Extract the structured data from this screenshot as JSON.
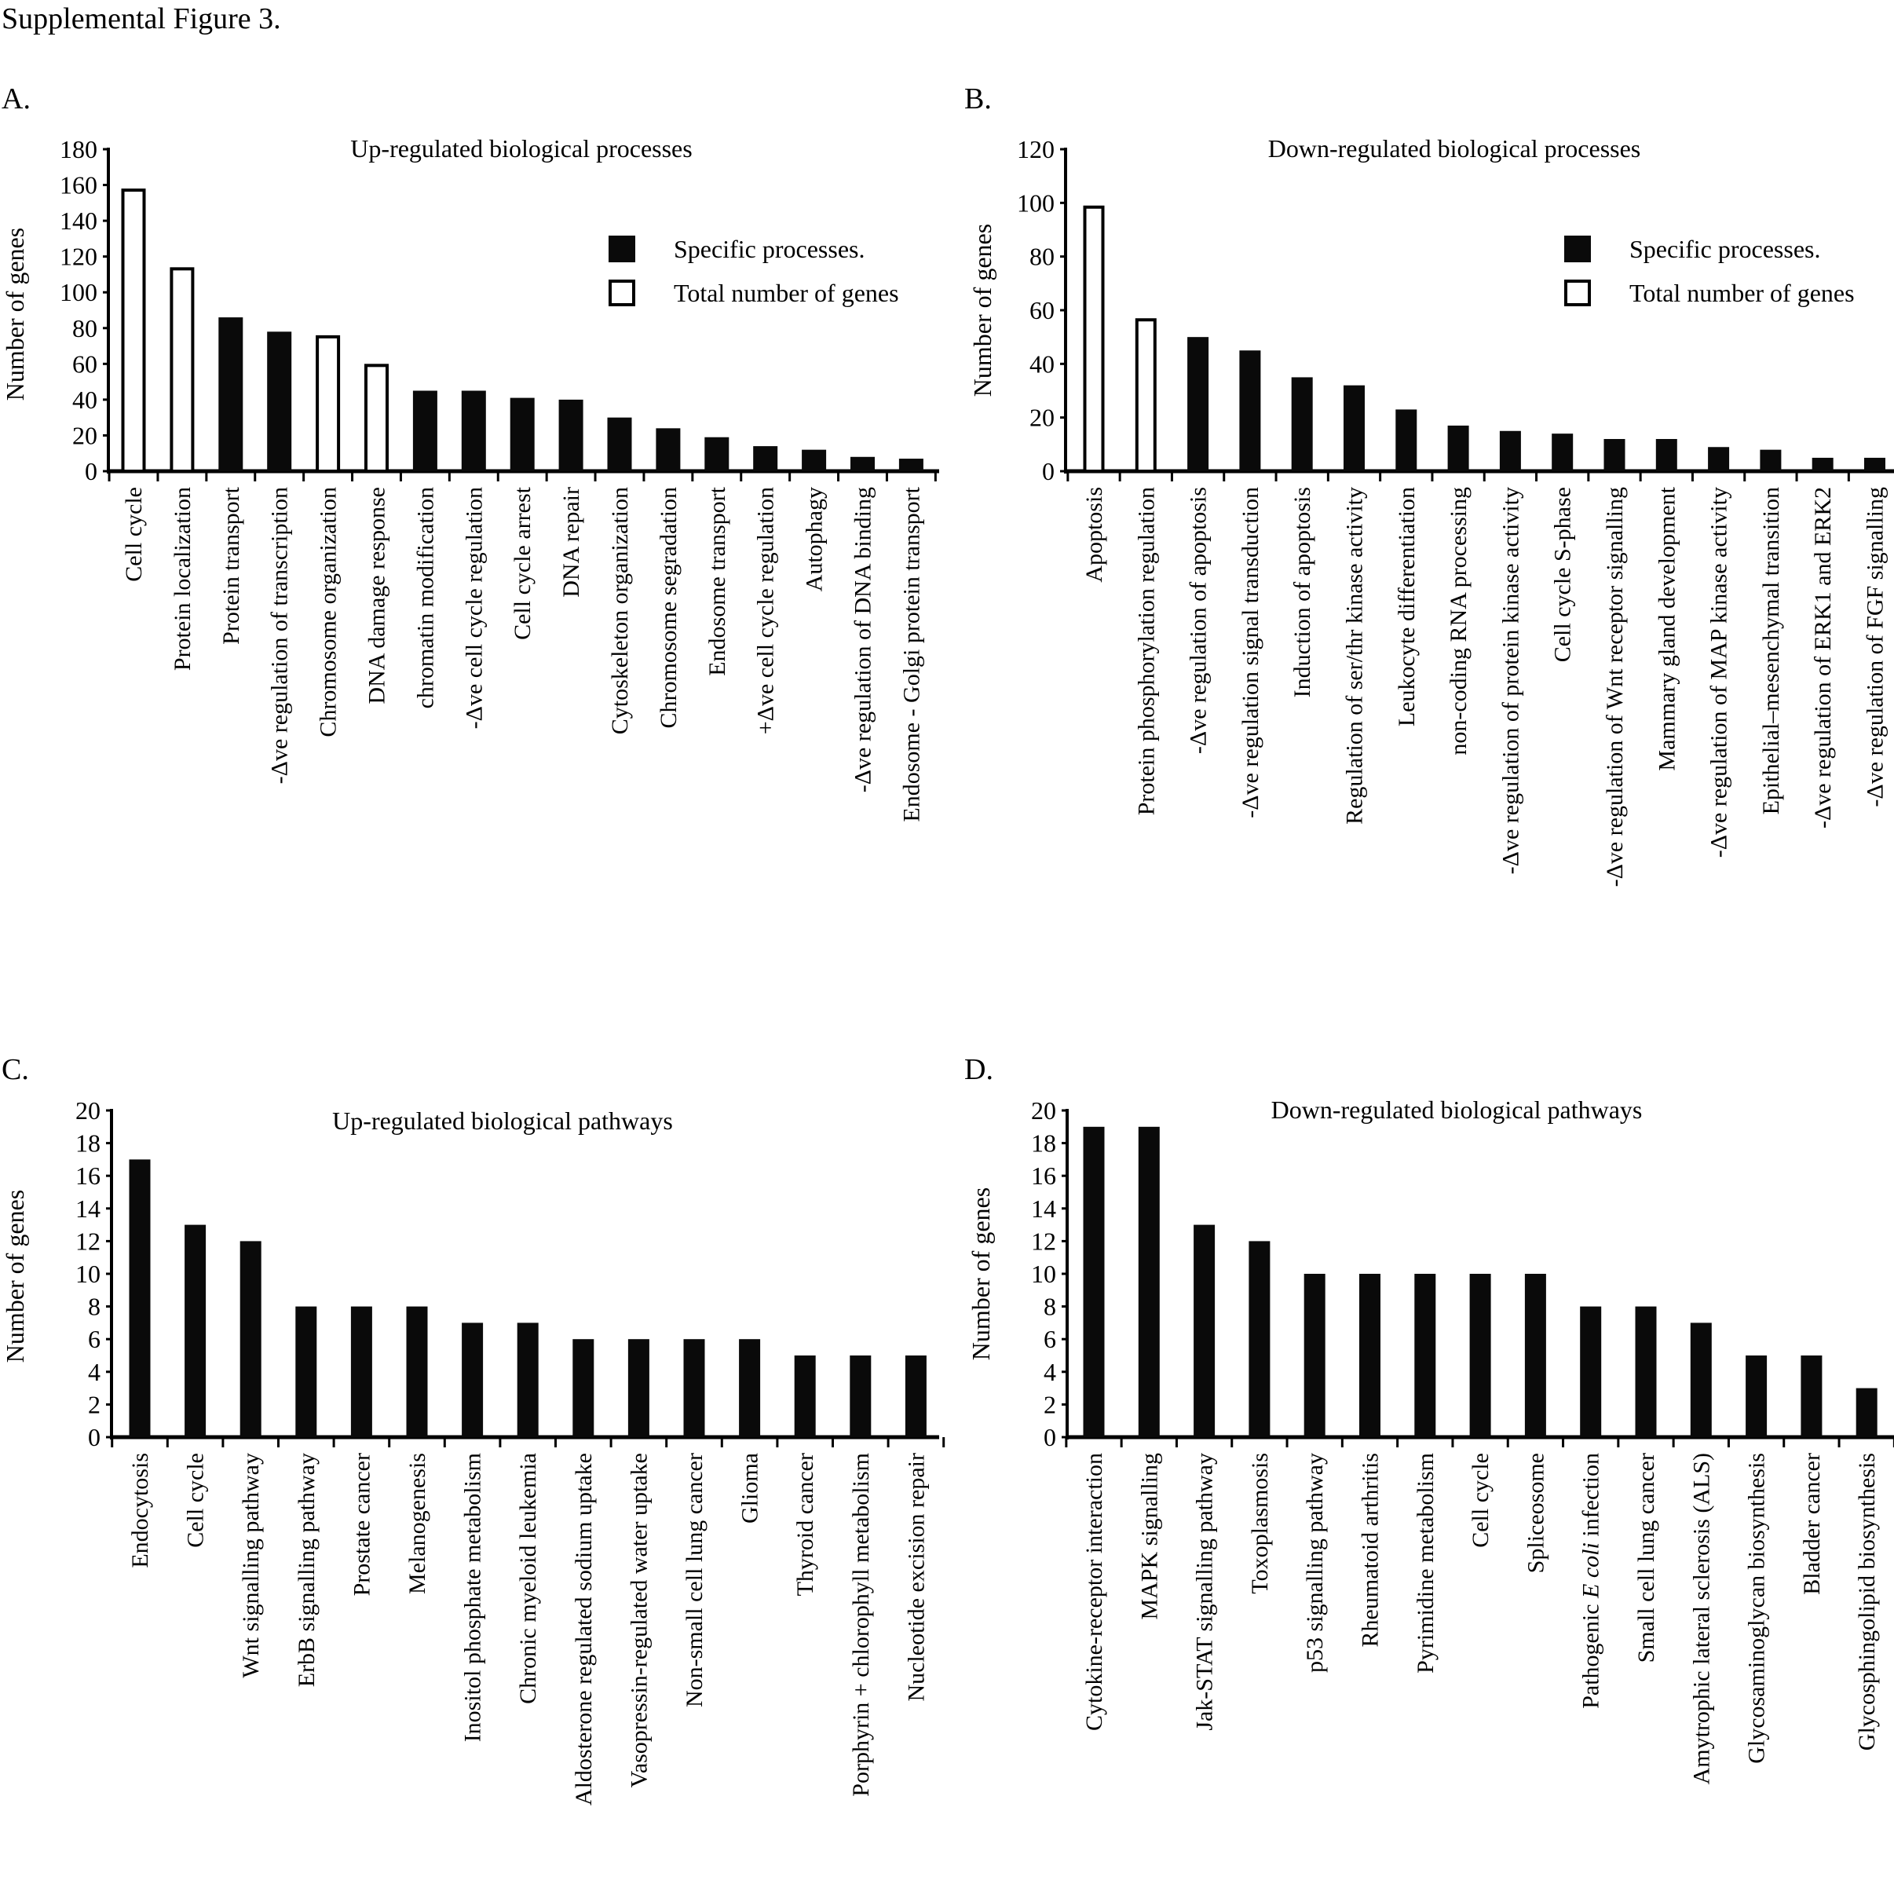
{
  "figure_title": "Supplemental Figure 3.",
  "chart_data": [
    {
      "panel": "A.",
      "type": "bar",
      "title": "Up-regulated biological processes",
      "xlabel": "",
      "ylabel": "Number of genes",
      "ylim": [
        0,
        180
      ],
      "yticks": [
        0,
        20,
        40,
        60,
        80,
        100,
        120,
        140,
        160,
        180
      ],
      "grid": false,
      "legend": {
        "position": "top-right",
        "entries": [
          {
            "label": "Specific processes.",
            "style": "filled"
          },
          {
            "label": "Total number of genes",
            "style": "open"
          }
        ]
      },
      "categories": [
        "Cell cycle",
        "Protein localization",
        "Protein transport",
        "-Δve regulation of transcription",
        "Chromosome organization",
        "DNA damage response",
        "chromatin modification",
        "-Δve cell cycle regulation",
        "Cell cycle arrest",
        "DNA repair",
        "Cytoskeleton organization",
        "Chromosome segradation",
        "Endosome transport",
        "+Δve cell cycle regulation",
        "Autophagy",
        "-Δve regulation of DNA binding",
        "Endosome - Golgi protein transport"
      ],
      "values": [
        158,
        114,
        86,
        78,
        76,
        60,
        45,
        45,
        41,
        40,
        30,
        24,
        19,
        14,
        12,
        8,
        7
      ],
      "bar_styles": [
        "open",
        "open",
        "filled",
        "filled",
        "open",
        "open",
        "filled",
        "filled",
        "filled",
        "filled",
        "filled",
        "filled",
        "filled",
        "filled",
        "filled",
        "filled",
        "filled"
      ]
    },
    {
      "panel": "B.",
      "type": "bar",
      "title": "Down-regulated biological processes",
      "xlabel": "",
      "ylabel": "Number of genes",
      "ylim": [
        0,
        120
      ],
      "yticks": [
        0,
        20,
        40,
        60,
        80,
        100,
        120
      ],
      "grid": false,
      "legend": {
        "position": "top-right",
        "entries": [
          {
            "label": "Specific processes.",
            "style": "filled"
          },
          {
            "label": "Total number of genes",
            "style": "open"
          }
        ]
      },
      "categories": [
        "Apoptosis",
        "Protein phosphorylation regulation",
        "-Δve regulation of apoptosis",
        "-Δve regulation signal transduction",
        "Induction of apoptosis",
        "Regulation of ser/thr kinase activity",
        "Leukocyte differentiation",
        "non-coding RNA processing",
        "-Δve regulation of protein kinase activity",
        "Cell cycle S-phase",
        "-Δve regulation of Wnt receptor signalling",
        "Mammary gland development",
        "-Δve regulation of MAP kinase activity",
        "Epithelial–mesenchymal transition",
        "-Δve regulation of ERK1 and ERK2",
        "-Δve regulation of FGF signalling"
      ],
      "values": [
        99,
        57,
        50,
        45,
        35,
        32,
        23,
        17,
        15,
        14,
        12,
        12,
        9,
        8,
        5,
        5
      ],
      "bar_styles": [
        "open",
        "open",
        "filled",
        "filled",
        "filled",
        "filled",
        "filled",
        "filled",
        "filled",
        "filled",
        "filled",
        "filled",
        "filled",
        "filled",
        "filled",
        "filled"
      ]
    },
    {
      "panel": "C.",
      "type": "bar",
      "title": "Up-regulated biological pathways",
      "xlabel": "",
      "ylabel": "Number of genes",
      "ylim": [
        0,
        20
      ],
      "yticks": [
        0,
        2,
        4,
        6,
        8,
        10,
        12,
        14,
        16,
        18,
        20
      ],
      "grid": false,
      "categories": [
        "Endocytosis",
        "Cell cycle",
        "Wnt signalling pathway",
        "ErbB signalling pathway",
        "Prostate cancer",
        "Melanogenesis",
        "Inositol phosphate metabolism",
        "Chronic myeloid leukemia",
        "Aldosterone regulated sodium uptake",
        "Vasopressin-regulated water uptake",
        "Non-small cell lung cancer",
        "Glioma",
        "Thyroid cancer",
        "Porphyrin + chlorophyll metabolism",
        "Nucleotide excision repair"
      ],
      "values": [
        17,
        13,
        12,
        8,
        8,
        8,
        7,
        7,
        6,
        6,
        6,
        6,
        5,
        5,
        5
      ],
      "bar_styles": [
        "filled",
        "filled",
        "filled",
        "filled",
        "filled",
        "filled",
        "filled",
        "filled",
        "filled",
        "filled",
        "filled",
        "filled",
        "filled",
        "filled",
        "filled"
      ]
    },
    {
      "panel": "D.",
      "type": "bar",
      "title": "Down-regulated biological pathways",
      "xlabel": "",
      "ylabel": "Number of genes",
      "ylim": [
        0,
        20
      ],
      "yticks": [
        0,
        2,
        4,
        6,
        8,
        10,
        12,
        14,
        16,
        18,
        20
      ],
      "grid": false,
      "categories": [
        "Cytokine-receptor interaction",
        "MAPK signalling",
        "Jak-STAT signalling pathway",
        "Toxoplasmosis",
        "p53 signalling pathway",
        "Rheumatoid arthritis",
        "Pyrimidine metabolism",
        "Cell cycle",
        "Spliceosome",
        "Pathogenic E coli infection",
        "Small cell lung cancer",
        "Amytrophic lateral sclerosis (ALS)",
        "Glycosaminoglycan biosynthesis",
        "Bladder cancer",
        "Glycosphingolipid biosynthesis"
      ],
      "values": [
        19,
        19,
        13,
        12,
        10,
        10,
        10,
        10,
        10,
        8,
        8,
        7,
        5,
        5,
        3
      ],
      "bar_styles": [
        "filled",
        "filled",
        "filled",
        "filled",
        "filled",
        "filled",
        "filled",
        "filled",
        "filled",
        "filled",
        "filled",
        "filled",
        "filled",
        "filled",
        "filled"
      ]
    }
  ]
}
